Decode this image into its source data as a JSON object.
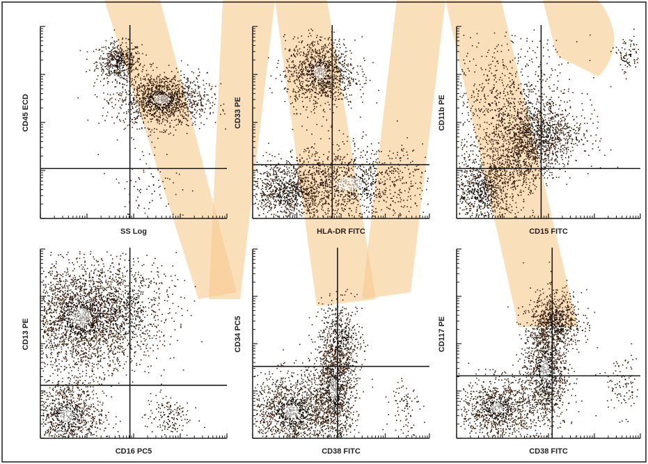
{
  "figure": {
    "background": "#ffffff",
    "watermark_color": "#f7c98e",
    "dot_color": "#3a1f0c",
    "dense_color": "#1a0d05",
    "axis_color": "#1a1a1a"
  },
  "chart_data": [
    {
      "type": "scatter",
      "xlabel": "SS Log",
      "ylabel": "CD45 ECD",
      "scale": "log",
      "quadrant": {
        "x": 0.48,
        "y": 0.26
      },
      "populations": [
        {
          "cx": 0.42,
          "cy": 0.82,
          "sx": 0.06,
          "sy": 0.05,
          "n": 500
        },
        {
          "cx": 0.65,
          "cy": 0.62,
          "sx": 0.12,
          "sy": 0.07,
          "n": 1400
        },
        {
          "cx": 0.55,
          "cy": 0.15,
          "sx": 0.1,
          "sy": 0.12,
          "n": 90
        }
      ]
    },
    {
      "type": "scatter",
      "xlabel": "HLA-DR FITC",
      "ylabel": "CD33 PE",
      "scale": "log",
      "quadrant": {
        "x": 0.45,
        "y": 0.28
      },
      "populations": [
        {
          "cx": 0.38,
          "cy": 0.76,
          "sx": 0.1,
          "sy": 0.09,
          "n": 1100
        },
        {
          "cx": 0.2,
          "cy": 0.14,
          "sx": 0.11,
          "sy": 0.08,
          "n": 900
        },
        {
          "cx": 0.55,
          "cy": 0.18,
          "sx": 0.22,
          "sy": 0.1,
          "n": 1200
        }
      ]
    },
    {
      "type": "scatter",
      "xlabel": "CD15 FITC",
      "ylabel": "CD11b PE",
      "scale": "log",
      "quadrant": {
        "x": 0.46,
        "y": 0.26
      },
      "populations": [
        {
          "cx": 0.14,
          "cy": 0.15,
          "sx": 0.1,
          "sy": 0.09,
          "n": 900
        },
        {
          "cx": 0.36,
          "cy": 0.32,
          "sx": 0.1,
          "sy": 0.08,
          "n": 500
        },
        {
          "cx": 0.44,
          "cy": 0.44,
          "sx": 0.12,
          "sy": 0.08,
          "n": 900
        },
        {
          "cx": 0.3,
          "cy": 0.58,
          "sx": 0.18,
          "sy": 0.18,
          "n": 900
        },
        {
          "cx": 0.93,
          "cy": 0.85,
          "sx": 0.04,
          "sy": 0.05,
          "n": 90
        }
      ]
    },
    {
      "type": "scatter",
      "xlabel": "CD16 PC5",
      "ylabel": "CD13 PE",
      "scale": "log",
      "quadrant": {
        "x": 0.48,
        "y": 0.28
      },
      "populations": [
        {
          "cx": 0.22,
          "cy": 0.64,
          "sx": 0.15,
          "sy": 0.14,
          "n": 2400
        },
        {
          "cx": 0.44,
          "cy": 0.68,
          "sx": 0.14,
          "sy": 0.14,
          "n": 700
        },
        {
          "cx": 0.14,
          "cy": 0.12,
          "sx": 0.1,
          "sy": 0.1,
          "n": 1000
        },
        {
          "cx": 0.68,
          "cy": 0.12,
          "sx": 0.06,
          "sy": 0.06,
          "n": 150
        }
      ]
    },
    {
      "type": "scatter",
      "xlabel": "CD38 FITC",
      "ylabel": "CD34 PC5",
      "scale": "log",
      "quadrant": {
        "x": 0.48,
        "y": 0.38
      },
      "populations": [
        {
          "cx": 0.22,
          "cy": 0.14,
          "sx": 0.12,
          "sy": 0.1,
          "n": 1400
        },
        {
          "cx": 0.46,
          "cy": 0.26,
          "sx": 0.06,
          "sy": 0.16,
          "n": 1300
        },
        {
          "cx": 0.5,
          "cy": 0.52,
          "sx": 0.06,
          "sy": 0.1,
          "n": 400
        },
        {
          "cx": 0.86,
          "cy": 0.18,
          "sx": 0.04,
          "sy": 0.08,
          "n": 80
        }
      ]
    },
    {
      "type": "scatter",
      "xlabel": "CD38 FITC",
      "ylabel": "CD117 PE",
      "scale": "log",
      "quadrant": {
        "x": 0.52,
        "y": 0.33
      },
      "populations": [
        {
          "cx": 0.22,
          "cy": 0.16,
          "sx": 0.1,
          "sy": 0.08,
          "n": 1000
        },
        {
          "cx": 0.48,
          "cy": 0.36,
          "sx": 0.06,
          "sy": 0.16,
          "n": 1200
        },
        {
          "cx": 0.54,
          "cy": 0.62,
          "sx": 0.07,
          "sy": 0.08,
          "n": 700
        },
        {
          "cx": 0.9,
          "cy": 0.28,
          "sx": 0.06,
          "sy": 0.08,
          "n": 100
        }
      ]
    }
  ]
}
